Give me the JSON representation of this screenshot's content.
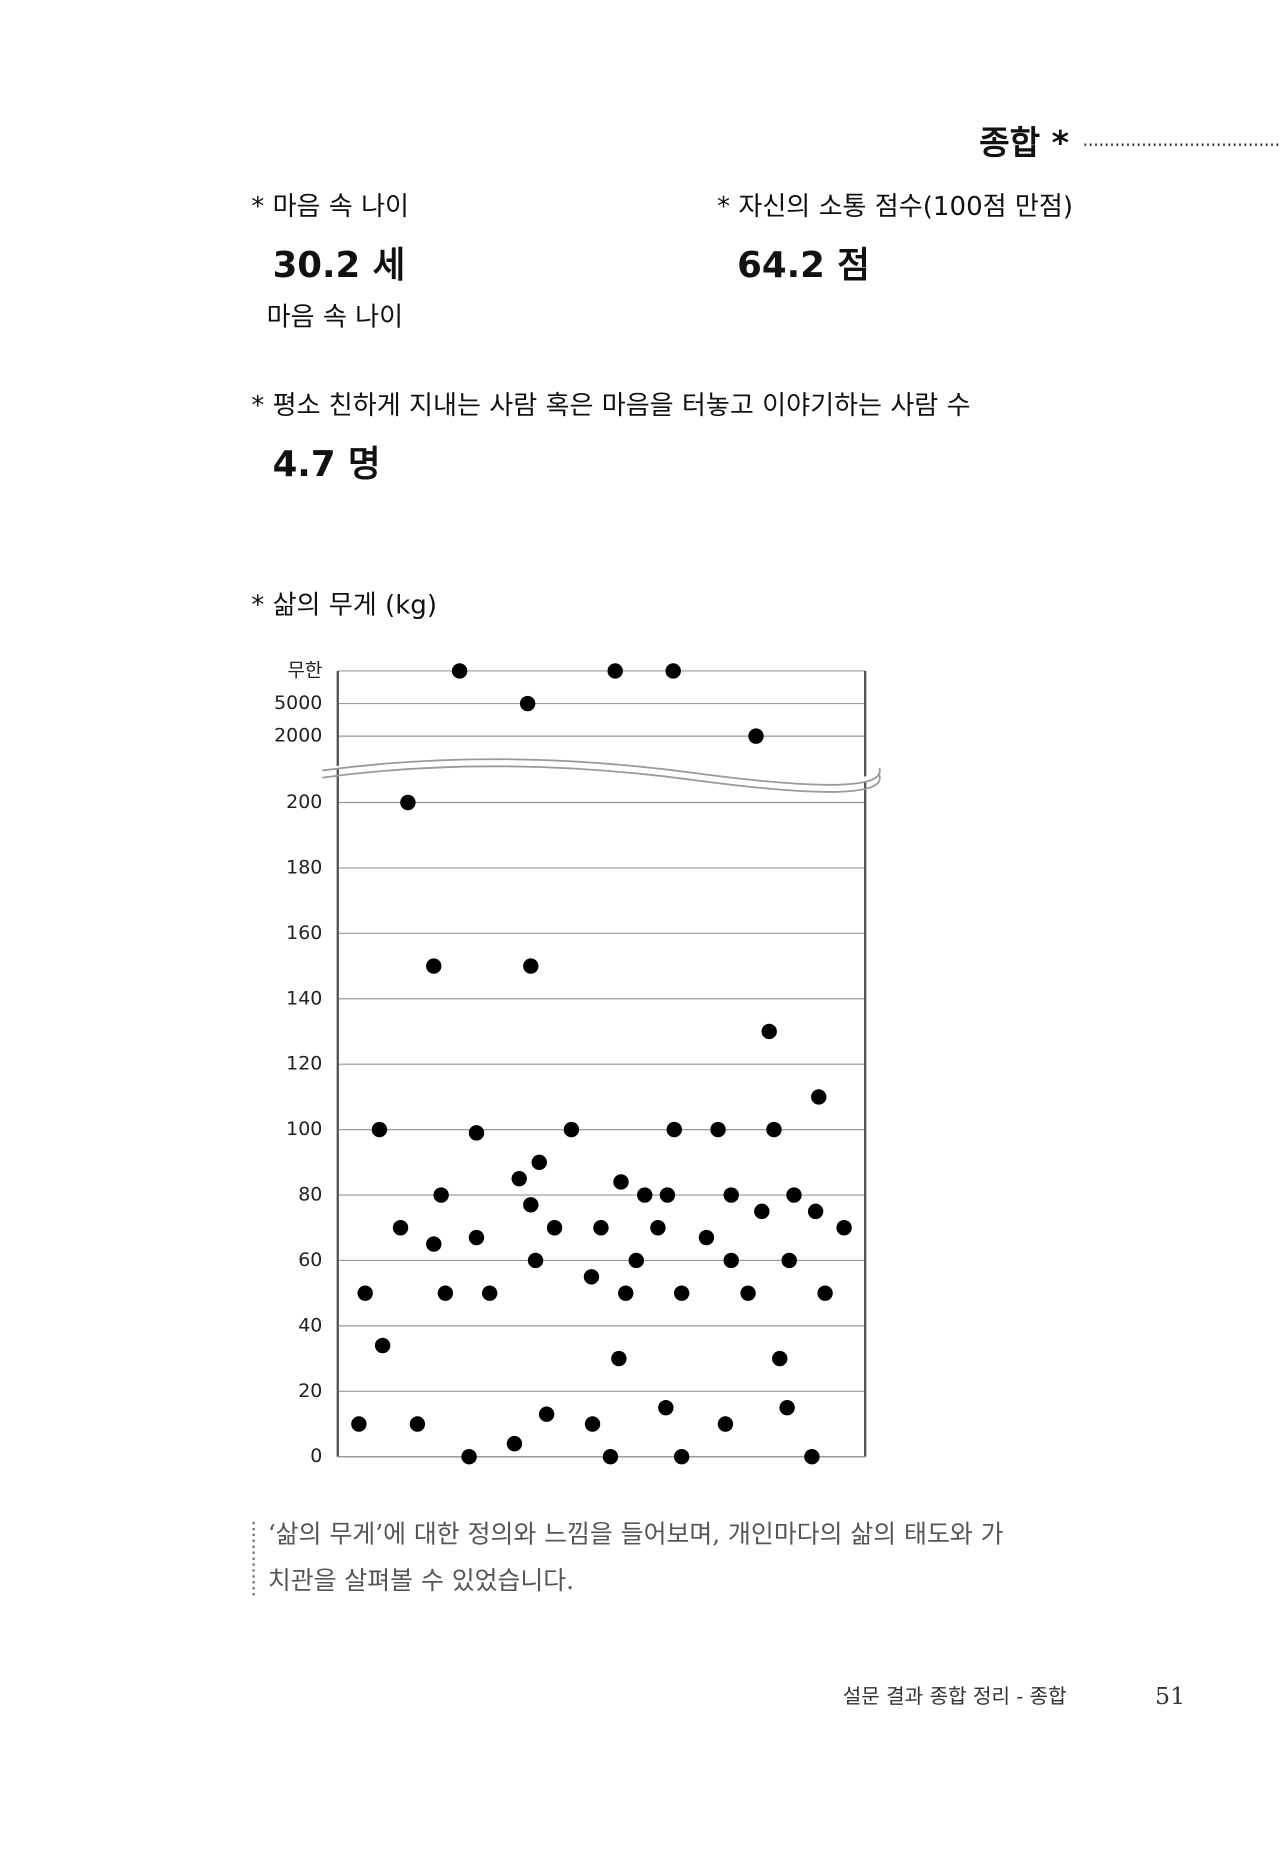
{
  "header": {
    "title": "종합 *"
  },
  "stats": [
    {
      "label": "* 마음 속 나이",
      "value": "30.2 세",
      "sub": "마음 속 나이"
    },
    {
      "label": "* 자신의 소통 점수(100점 만점)",
      "value": "64.2 점"
    },
    {
      "label": "* 평소 친하게 지내는 사람 혹은 마음을 터놓고 이야기하는 사람 수",
      "value": "4.7 명"
    }
  ],
  "chart_data": [
    {
      "type": "scatter",
      "title": "* 삶의 무게 (kg)",
      "y_levels": [
        "2000",
        "5000",
        "무한"
      ],
      "xlim": [
        0,
        100
      ],
      "x": [
        23.1,
        36.0,
        52.6,
        63.6,
        79.3
      ],
      "values": [
        "무한",
        "5000",
        "무한",
        "무한",
        "2000"
      ],
      "color": "#000000",
      "grid": true
    },
    {
      "type": "scatter",
      "xlim": [
        0,
        100
      ],
      "ylim": [
        0,
        200
      ],
      "yticks": [
        0,
        20,
        40,
        60,
        80,
        100,
        120,
        140,
        160,
        180,
        200
      ],
      "grid": true,
      "color": "#000000",
      "x": [
        4,
        5.2,
        7.9,
        8.5,
        11.9,
        13.3,
        15.1,
        18.2,
        18.2,
        19.6,
        20.4,
        24.9,
        26.3,
        26.3,
        28.8,
        33.5,
        34.4,
        36.6,
        36.6,
        37.5,
        38.2,
        39.6,
        41.1,
        44.3,
        48.1,
        48.3,
        49.9,
        51.7,
        53.3,
        53.7,
        54.6,
        56.6,
        58.2,
        60.7,
        62.2,
        62.5,
        63.8,
        65.2,
        65.2,
        69.9,
        72.1,
        73.5,
        74.6,
        74.6,
        77.8,
        80.4,
        81.8,
        82.7,
        83.8,
        85.2,
        85.6,
        86.5,
        89.9,
        90.6,
        91.2,
        92.4,
        96.0
      ],
      "values": [
        10,
        50,
        100,
        34,
        70,
        200,
        10,
        65,
        150,
        80,
        50,
        0,
        67,
        99,
        50,
        4,
        85,
        77,
        150,
        60,
        90,
        13,
        70,
        100,
        55,
        10,
        70,
        0,
        30,
        84,
        50,
        60,
        80,
        70,
        15,
        80,
        100,
        50,
        0,
        67,
        100,
        10,
        80,
        60,
        50,
        75,
        130,
        100,
        30,
        15,
        60,
        80,
        0,
        75,
        110,
        50,
        70
      ]
    }
  ],
  "caption": [
    "‘삶의 무게’에 대한 정의와 느낌을 들어보며, 개인마다의 삶의 태도와 가",
    "치관을 살펴볼 수 있었습니다."
  ],
  "footer": {
    "text": "설문 결과 종합 정리 - 종합",
    "page": "51"
  }
}
